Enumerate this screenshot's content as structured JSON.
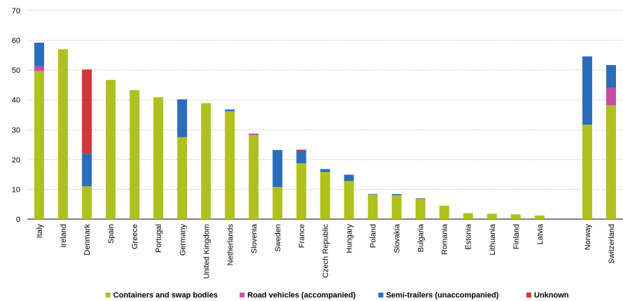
{
  "chart_data": {
    "type": "bar",
    "stacked": true,
    "categories": [
      "Italy",
      "Ireland",
      "Denmark",
      "Spain",
      "Greece",
      "Portugal",
      "Germany",
      "United Kingdom",
      "Netherlands",
      "Slovenia",
      "Sweden",
      "France",
      "Czech Republic",
      "Hungary",
      "Poland",
      "Slovakia",
      "Bulgaria",
      "Romania",
      "Estonia",
      "Lithuania",
      "Finland",
      "Latvia",
      null,
      "Norway",
      "Switzerland"
    ],
    "series": [
      {
        "name": "Containers and swap bodies",
        "color": "#afc11c",
        "values": [
          49.7,
          57.0,
          11.0,
          46.7,
          43.3,
          40.9,
          27.5,
          38.9,
          36.2,
          28.2,
          10.8,
          18.7,
          15.8,
          12.8,
          8.2,
          8.0,
          6.8,
          4.5,
          2.0,
          1.8,
          1.6,
          1.2,
          null,
          31.7,
          38.2
        ]
      },
      {
        "name": "Road vehicles (accompanied)",
        "color": "#cc4aa6",
        "values": [
          1.6,
          null,
          null,
          null,
          null,
          null,
          null,
          null,
          null,
          0.5,
          null,
          null,
          null,
          null,
          null,
          null,
          null,
          null,
          null,
          null,
          null,
          null,
          null,
          null,
          5.8
        ]
      },
      {
        "name": "Semi-trailers (unaccompanied)",
        "color": "#2a6ebb",
        "values": [
          7.9,
          null,
          11.0,
          null,
          null,
          null,
          12.7,
          null,
          0.6,
          null,
          12.4,
          4.2,
          1.0,
          2.1,
          0.2,
          0.4,
          0.2,
          null,
          null,
          null,
          null,
          null,
          null,
          22.9,
          7.7
        ]
      },
      {
        "name": "Unknown",
        "color": "#d2373b",
        "values": [
          null,
          null,
          28.2,
          null,
          null,
          null,
          null,
          null,
          null,
          null,
          null,
          0.4,
          null,
          null,
          null,
          null,
          null,
          null,
          null,
          null,
          null,
          null,
          null,
          null,
          null
        ]
      }
    ],
    "ylim": [
      0,
      70
    ],
    "yticks": [
      0,
      10,
      20,
      30,
      40,
      50,
      60,
      70
    ],
    "grid": true,
    "legend": "bottom"
  }
}
